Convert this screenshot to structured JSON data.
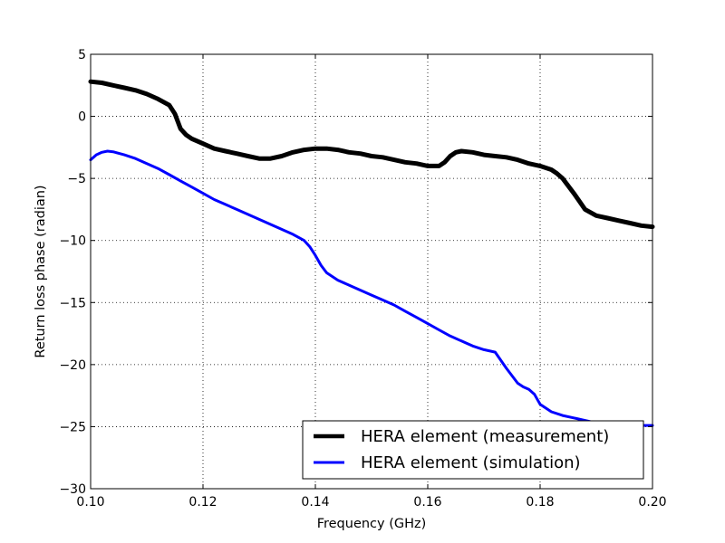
{
  "chart_data": {
    "type": "line",
    "title": "",
    "xlabel": "Frequency (GHz)",
    "ylabel": "Return loss phase (radian)",
    "xlim": [
      0.1,
      0.2
    ],
    "ylim": [
      -30,
      5
    ],
    "xticks": [
      0.1,
      0.12,
      0.14,
      0.16,
      0.18,
      0.2
    ],
    "yticks": [
      5,
      0,
      -5,
      -10,
      -15,
      -20,
      -25,
      -30
    ],
    "xtick_labels": [
      "0.10",
      "0.12",
      "0.14",
      "0.16",
      "0.18",
      "0.20"
    ],
    "ytick_labels": [
      "5",
      "0",
      "−5",
      "−10",
      "−15",
      "−20",
      "−25",
      "−30"
    ],
    "grid": true,
    "legend_position": "lower-right",
    "series": [
      {
        "name": "HERA element (measurement)",
        "color": "#000000",
        "x": [
          0.1,
          0.102,
          0.104,
          0.106,
          0.108,
          0.11,
          0.112,
          0.114,
          0.115,
          0.116,
          0.117,
          0.118,
          0.12,
          0.122,
          0.124,
          0.126,
          0.128,
          0.13,
          0.132,
          0.134,
          0.136,
          0.138,
          0.14,
          0.142,
          0.144,
          0.146,
          0.148,
          0.15,
          0.152,
          0.154,
          0.156,
          0.158,
          0.16,
          0.162,
          0.163,
          0.164,
          0.165,
          0.166,
          0.168,
          0.17,
          0.172,
          0.174,
          0.176,
          0.178,
          0.18,
          0.182,
          0.183,
          0.184,
          0.186,
          0.188,
          0.19,
          0.192,
          0.194,
          0.196,
          0.198,
          0.2
        ],
        "y": [
          2.8,
          2.7,
          2.5,
          2.3,
          2.1,
          1.8,
          1.4,
          0.9,
          0.2,
          -1.0,
          -1.5,
          -1.8,
          -2.2,
          -2.6,
          -2.8,
          -3.0,
          -3.2,
          -3.4,
          -3.4,
          -3.2,
          -2.9,
          -2.7,
          -2.6,
          -2.6,
          -2.7,
          -2.9,
          -3.0,
          -3.2,
          -3.3,
          -3.5,
          -3.7,
          -3.8,
          -4.0,
          -4.0,
          -3.7,
          -3.2,
          -2.9,
          -2.8,
          -2.9,
          -3.1,
          -3.2,
          -3.3,
          -3.5,
          -3.8,
          -4.0,
          -4.3,
          -4.6,
          -5.0,
          -6.2,
          -7.5,
          -8.0,
          -8.2,
          -8.4,
          -8.6,
          -8.8,
          -8.9
        ]
      },
      {
        "name": "HERA element (simulation)",
        "color": "#0000ff",
        "x": [
          0.1,
          0.101,
          0.102,
          0.103,
          0.104,
          0.106,
          0.108,
          0.11,
          0.112,
          0.114,
          0.116,
          0.118,
          0.12,
          0.122,
          0.124,
          0.126,
          0.128,
          0.13,
          0.132,
          0.134,
          0.136,
          0.138,
          0.139,
          0.14,
          0.141,
          0.142,
          0.143,
          0.144,
          0.146,
          0.148,
          0.15,
          0.152,
          0.154,
          0.156,
          0.158,
          0.16,
          0.162,
          0.164,
          0.166,
          0.168,
          0.17,
          0.172,
          0.174,
          0.176,
          0.177,
          0.178,
          0.179,
          0.1795,
          0.18,
          0.181,
          0.182,
          0.184,
          0.186,
          0.188,
          0.19,
          0.192,
          0.194,
          0.196,
          0.198,
          0.2
        ],
        "y": [
          -3.5,
          -3.1,
          -2.9,
          -2.8,
          -2.85,
          -3.1,
          -3.4,
          -3.8,
          -4.2,
          -4.7,
          -5.2,
          -5.7,
          -6.2,
          -6.7,
          -7.1,
          -7.5,
          -7.9,
          -8.3,
          -8.7,
          -9.1,
          -9.5,
          -10.0,
          -10.5,
          -11.2,
          -12.0,
          -12.6,
          -12.9,
          -13.2,
          -13.6,
          -14.0,
          -14.4,
          -14.8,
          -15.2,
          -15.7,
          -16.2,
          -16.7,
          -17.2,
          -17.7,
          -18.1,
          -18.5,
          -18.8,
          -19.0,
          -20.3,
          -21.5,
          -21.8,
          -22.0,
          -22.4,
          -22.8,
          -23.2,
          -23.5,
          -23.8,
          -24.1,
          -24.3,
          -24.5,
          -24.7,
          -24.9,
          -24.9,
          -24.9,
          -24.9,
          -24.9
        ]
      }
    ]
  }
}
